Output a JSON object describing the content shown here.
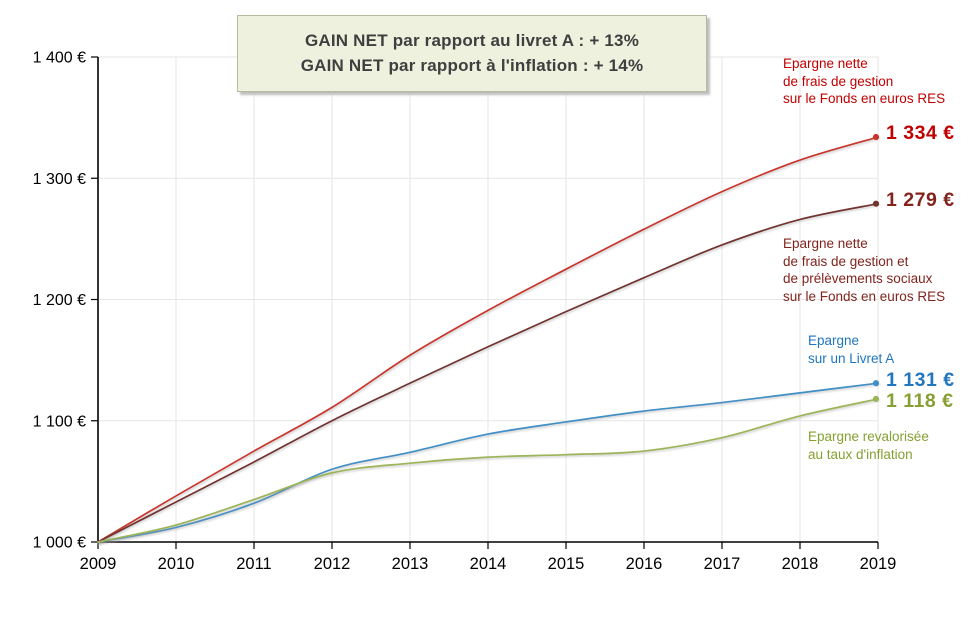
{
  "title_box": {
    "line1": "GAIN NET par rapport au livret A : + 13%",
    "line2": "GAIN NET par rapport à l'inflation : + 14%"
  },
  "chart_data": {
    "type": "line",
    "x": [
      2009,
      2010,
      2011,
      2012,
      2013,
      2014,
      2015,
      2016,
      2017,
      2018,
      2019
    ],
    "ylim": [
      1000,
      1400
    ],
    "grid": true,
    "legend_position": "right-annotations",
    "y_ticks": [
      {
        "value": 1000,
        "label": "1 000 €"
      },
      {
        "value": 1100,
        "label": "1 100 €"
      },
      {
        "value": 1200,
        "label": "1 200 €"
      },
      {
        "value": 1300,
        "label": "1 300 €"
      },
      {
        "value": 1400,
        "label": "1 400 €"
      }
    ],
    "series": [
      {
        "name": "epargne-res-nette-frais-gestion",
        "label_lines": [
          "Epargne nette",
          "de frais de gestion",
          "sur le Fonds en euros RES"
        ],
        "end_label": "1 334 €",
        "line_color": "#C9342C",
        "text_color": "#C00000",
        "values": [
          1000,
          1038,
          1075,
          1111,
          1154,
          1191,
          1225,
          1258,
          1289,
          1315,
          1334
        ]
      },
      {
        "name": "epargne-res-nette-frais-et-prelevements",
        "label_lines": [
          "Epargne nette",
          "de frais de gestion et",
          "de prélèvements sociaux",
          "sur le Fonds en euros RES"
        ],
        "end_label": "1 279 €",
        "line_color": "#72322E",
        "text_color": "#82241D",
        "values": [
          1000,
          1033,
          1066,
          1100,
          1131,
          1161,
          1190,
          1218,
          1245,
          1266,
          1279
        ]
      },
      {
        "name": "epargne-livret-a",
        "label_lines": [
          "Epargne",
          "sur un Livret A"
        ],
        "end_label": "1 131 €",
        "line_color": "#3F8FC6",
        "text_color": "#2176BE",
        "values": [
          1000,
          1012,
          1032,
          1060,
          1074,
          1089,
          1099,
          1108,
          1115,
          1123,
          1131
        ]
      },
      {
        "name": "epargne-revalorisee-inflation",
        "label_lines": [
          "Epargne revalorisée",
          "au taux d'inflation"
        ],
        "end_label": "1 118 €",
        "line_color": "#9CB559",
        "text_color": "#86A032",
        "values": [
          1000,
          1014,
          1035,
          1057,
          1065,
          1070,
          1072,
          1075,
          1086,
          1104,
          1118
        ]
      }
    ],
    "axis_color": "#000000",
    "grid_color": "#E6E6E6",
    "tick_label_color": "#000000"
  }
}
